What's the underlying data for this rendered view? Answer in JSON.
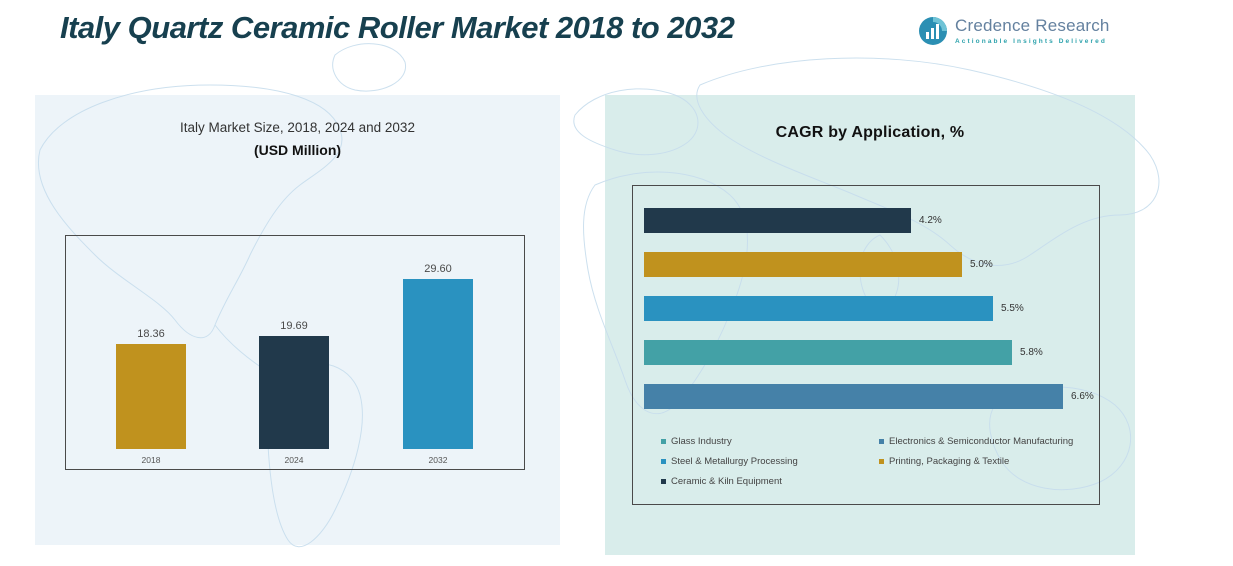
{
  "header": {
    "title": "Italy Quartz Ceramic Roller Market 2018 to 2032",
    "logo": {
      "name": "Credence Research",
      "tagline": "Actionable Insights Delivered"
    }
  },
  "market_chart": {
    "title_line1": "Italy Market Size, 2018, 2024 and 2032",
    "title_line2": "(USD Million)"
  },
  "cagr_chart": {
    "title": "CAGR by Application, %"
  },
  "chart_data": [
    {
      "id": "market_size",
      "type": "bar",
      "title": "Italy Market Size, 2018, 2024 and 2032 (USD Million)",
      "categories": [
        "2018",
        "2024",
        "2032"
      ],
      "values": [
        18.36,
        19.69,
        29.6
      ],
      "value_labels": [
        "18.36",
        "19.69",
        "29.60"
      ],
      "colors": [
        "#c0921e",
        "#21394b",
        "#2a92c0"
      ],
      "xlabel": "",
      "ylabel": "USD Million",
      "ylim": [
        0,
        30
      ],
      "grid": false,
      "legend_position": "none"
    },
    {
      "id": "cagr_by_application",
      "type": "bar",
      "orientation": "horizontal",
      "title": "CAGR by Application, %",
      "categories": [
        "Ceramic & Kiln Equipment",
        "Printing, Packaging & Textile",
        "Steel & Metallurgy Processing",
        "Glass Industry",
        "Electronics & Semiconductor Manufacturing"
      ],
      "values": [
        4.2,
        5.0,
        5.5,
        5.8,
        6.6
      ],
      "value_labels": [
        "4.2%",
        "5.0%",
        "5.5%",
        "5.8%",
        "6.6%"
      ],
      "colors": [
        "#21394b",
        "#c0921e",
        "#2a92c0",
        "#43a1a6",
        "#4581a8"
      ],
      "xlim": [
        0,
        7
      ],
      "grid": false,
      "legend_position": "bottom",
      "legend": [
        {
          "label": "Glass Industry",
          "color": "#43a1a6"
        },
        {
          "label": "Electronics & Semiconductor Manufacturing",
          "color": "#4581a8"
        },
        {
          "label": "Steel & Metallurgy Processing",
          "color": "#2a92c0"
        },
        {
          "label": "Printing, Packaging & Textile",
          "color": "#c0921e"
        },
        {
          "label": "Ceramic & Kiln Equipment",
          "color": "#21394b"
        }
      ]
    }
  ]
}
